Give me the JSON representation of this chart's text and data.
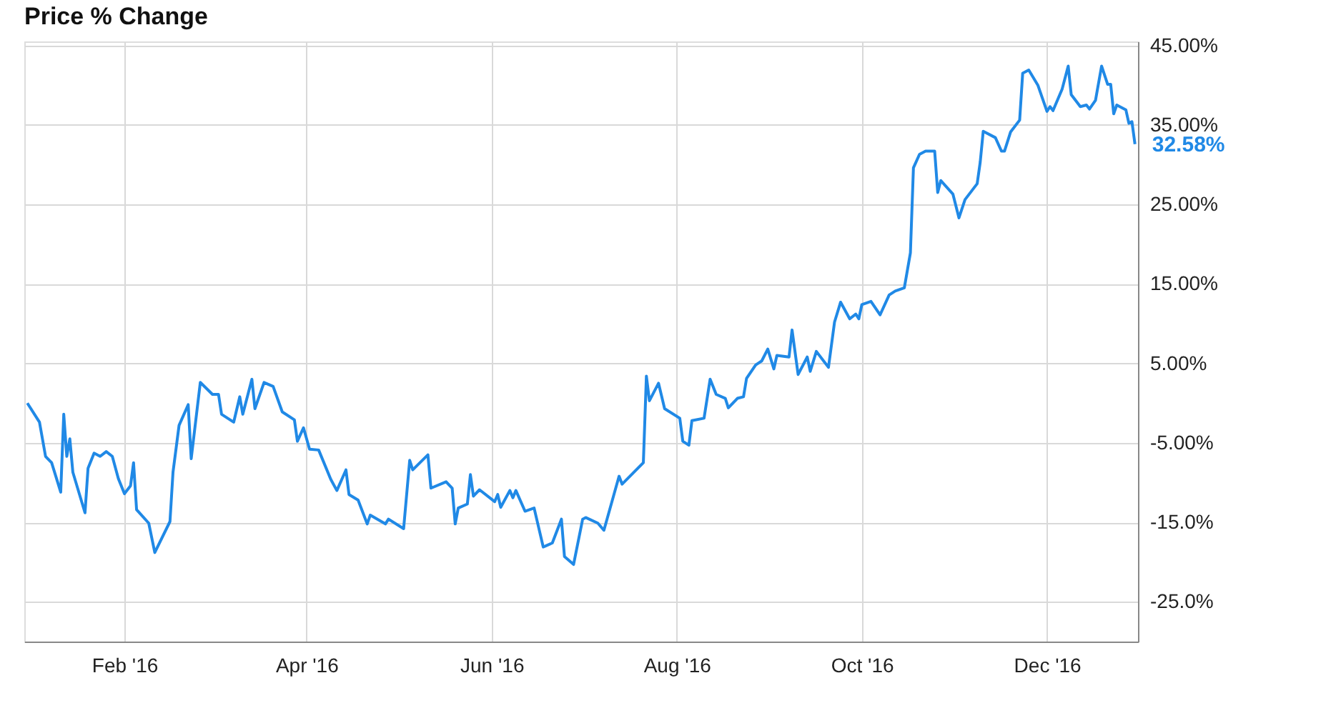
{
  "chart_data": {
    "type": "line",
    "title": "Price % Change",
    "x": [
      "2015-12-31",
      "2016-01-04",
      "2016-01-06",
      "2016-01-08",
      "2016-01-11",
      "2016-01-12",
      "2016-01-13",
      "2016-01-14",
      "2016-01-15",
      "2016-01-19",
      "2016-01-20",
      "2016-01-22",
      "2016-01-24",
      "2016-01-26",
      "2016-01-28",
      "2016-01-30",
      "2016-02-01",
      "2016-02-03",
      "2016-02-04",
      "2016-02-05",
      "2016-02-09",
      "2016-02-11",
      "2016-02-16",
      "2016-02-17",
      "2016-02-19",
      "2016-02-22",
      "2016-02-23",
      "2016-02-26",
      "2016-03-01",
      "2016-03-03",
      "2016-03-04",
      "2016-03-08",
      "2016-03-10",
      "2016-03-11",
      "2016-03-14",
      "2016-03-15",
      "2016-03-18",
      "2016-03-21",
      "2016-03-24",
      "2016-03-28",
      "2016-03-29",
      "2016-03-31",
      "2016-04-02",
      "2016-04-05",
      "2016-04-09",
      "2016-04-11",
      "2016-04-14",
      "2016-04-15",
      "2016-04-18",
      "2016-04-21",
      "2016-04-22",
      "2016-04-27",
      "2016-04-28",
      "2016-05-03",
      "2016-05-05",
      "2016-05-06",
      "2016-05-11",
      "2016-05-12",
      "2016-05-17",
      "2016-05-19",
      "2016-05-20",
      "2016-05-21",
      "2016-05-24",
      "2016-05-25",
      "2016-05-26",
      "2016-05-28",
      "2016-06-02",
      "2016-06-03",
      "2016-06-04",
      "2016-06-07",
      "2016-06-08",
      "2016-06-09",
      "2016-06-12",
      "2016-06-15",
      "2016-06-18",
      "2016-06-21",
      "2016-06-24",
      "2016-06-25",
      "2016-06-28",
      "2016-07-01",
      "2016-07-02",
      "2016-07-06",
      "2016-07-08",
      "2016-07-13",
      "2016-07-14",
      "2016-07-21",
      "2016-07-22",
      "2016-07-23",
      "2016-07-26",
      "2016-07-28",
      "2016-08-02",
      "2016-08-03",
      "2016-08-05",
      "2016-08-06",
      "2016-08-10",
      "2016-08-12",
      "2016-08-14",
      "2016-08-17",
      "2016-08-18",
      "2016-08-21",
      "2016-08-23",
      "2016-08-24",
      "2016-08-27",
      "2016-08-29",
      "2016-08-31",
      "2016-09-02",
      "2016-09-03",
      "2016-09-07",
      "2016-09-08",
      "2016-09-10",
      "2016-09-13",
      "2016-09-14",
      "2016-09-16",
      "2016-09-20",
      "2016-09-22",
      "2016-09-24",
      "2016-09-27",
      "2016-09-29",
      "2016-09-30",
      "2016-10-01",
      "2016-10-04",
      "2016-10-07",
      "2016-10-10",
      "2016-10-12",
      "2016-10-15",
      "2016-10-17",
      "2016-10-18",
      "2016-10-20",
      "2016-10-22",
      "2016-10-25",
      "2016-10-26",
      "2016-10-27",
      "2016-10-31",
      "2016-11-02",
      "2016-11-04",
      "2016-11-08",
      "2016-11-09",
      "2016-11-10",
      "2016-11-14",
      "2016-11-16",
      "2016-11-17",
      "2016-11-19",
      "2016-11-22",
      "2016-11-23",
      "2016-11-25",
      "2016-11-28",
      "2016-12-01",
      "2016-12-02",
      "2016-12-03",
      "2016-12-06",
      "2016-12-08",
      "2016-12-09",
      "2016-12-12",
      "2016-12-14",
      "2016-12-15",
      "2016-12-17",
      "2016-12-19",
      "2016-12-21",
      "2016-12-22",
      "2016-12-23",
      "2016-12-24",
      "2016-12-27",
      "2016-12-28",
      "2016-12-29",
      "2016-12-30"
    ],
    "series": [
      {
        "color": "#2089e6",
        "values": [
          0,
          -2.4,
          -6.7,
          -7.5,
          -11.2,
          -1.4,
          -6.7,
          -4.5,
          -8.7,
          -13.8,
          -8.2,
          -6.3,
          -6.7,
          -6.1,
          -6.7,
          -9.5,
          -11.4,
          -10.4,
          -7.5,
          -13.4,
          -15.1,
          -18.8,
          -14.9,
          -8.7,
          -2.8,
          -0.2,
          -7.0,
          2.6,
          1.1,
          1.1,
          -1.4,
          -2.4,
          0.8,
          -1.4,
          3.0,
          -0.7,
          2.6,
          2.1,
          -1.1,
          -2.1,
          -4.8,
          -3.1,
          -5.8,
          -5.9,
          -9.6,
          -11.0,
          -8.4,
          -11.5,
          -12.2,
          -15.2,
          -14.1,
          -15.2,
          -14.6,
          -15.8,
          -7.2,
          -8.4,
          -6.5,
          -10.7,
          -9.9,
          -10.7,
          -15.2,
          -13.2,
          -12.7,
          -9.0,
          -11.7,
          -10.9,
          -12.4,
          -11.5,
          -13.1,
          -11.0,
          -11.9,
          -11.0,
          -13.6,
          -13.2,
          -18.1,
          -17.6,
          -14.6,
          -19.3,
          -20.3,
          -14.6,
          -14.4,
          -15.1,
          -16.0,
          -9.2,
          -10.2,
          -7.5,
          3.4,
          0.3,
          2.5,
          -0.7,
          -1.9,
          -4.8,
          -5.3,
          -2.2,
          -1.9,
          3.0,
          1.1,
          0.6,
          -0.6,
          0.6,
          0.8,
          3.1,
          4.8,
          5.3,
          6.8,
          4.3,
          6.0,
          5.8,
          9.2,
          3.6,
          5.8,
          4.0,
          6.5,
          4.5,
          10.2,
          12.7,
          10.6,
          11.2,
          10.6,
          12.4,
          12.8,
          11.1,
          13.6,
          14.1,
          14.5,
          18.9,
          29.6,
          31.3,
          31.7,
          31.7,
          26.5,
          28.0,
          26.3,
          23.3,
          25.6,
          27.6,
          30.3,
          34.2,
          33.4,
          31.7,
          31.7,
          34.1,
          35.6,
          41.5,
          41.9,
          40.0,
          36.7,
          37.3,
          36.8,
          39.5,
          42.4,
          38.8,
          37.3,
          37.5,
          37.0,
          38.1,
          42.4,
          40.1,
          40.1,
          36.4,
          37.5,
          36.9,
          35.2,
          35.4,
          32.58
        ]
      }
    ],
    "xlim": [
      "2015-12-30",
      "2016-12-31"
    ],
    "xticks": [
      {
        "value": "2016-02-01",
        "label": "Feb '16"
      },
      {
        "value": "2016-04-01",
        "label": "Apr '16"
      },
      {
        "value": "2016-06-01",
        "label": "Jun '16"
      },
      {
        "value": "2016-08-01",
        "label": "Aug '16"
      },
      {
        "value": "2016-10-01",
        "label": "Oct '16"
      },
      {
        "value": "2016-12-01",
        "label": "Dec '16"
      }
    ],
    "ylim": [
      -30,
      45.5
    ],
    "yticks": [
      {
        "value": 45,
        "label": "45.00%"
      },
      {
        "value": 35,
        "label": "35.00%"
      },
      {
        "value": 25,
        "label": "25.00%"
      },
      {
        "value": 15,
        "label": "15.00%"
      },
      {
        "value": 5,
        "label": "5.00%"
      },
      {
        "value": -5,
        "label": "-5.00%"
      },
      {
        "value": -15,
        "label": "-15.0%"
      },
      {
        "value": -25,
        "label": "-25.0%"
      }
    ],
    "annotations": [
      {
        "text": "32.58%",
        "x": "2016-12-30",
        "y": 32.58
      }
    ],
    "grid": true,
    "marker": "none",
    "line_style": "solid"
  }
}
